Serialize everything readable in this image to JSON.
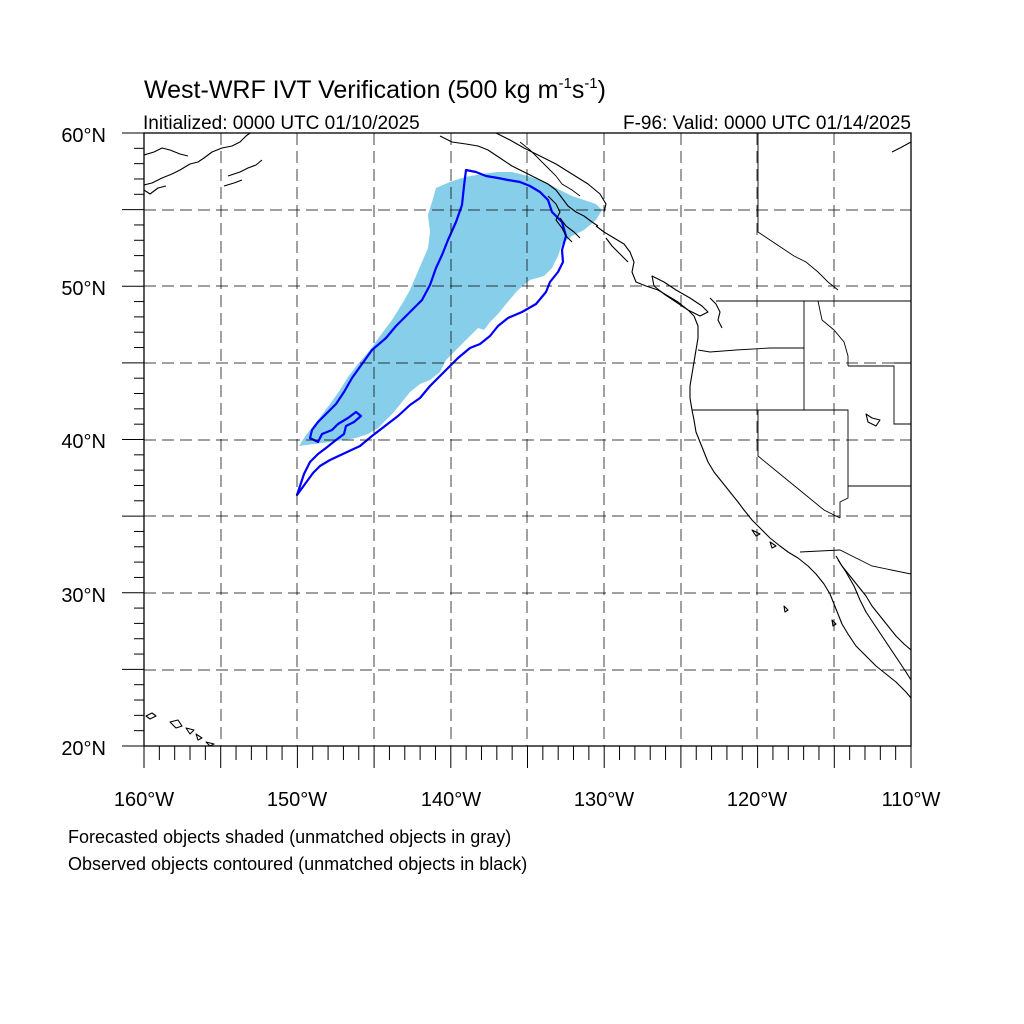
{
  "title": {
    "main": "West-WRF IVT Verification (500 kg m",
    "exp1": "-1",
    "mid": "s",
    "exp2": "-1",
    "end": ")"
  },
  "initialized": "Initialized: 0000 UTC 01/10/2025",
  "valid": "F-96: Valid: 0000 UTC 01/14/2025",
  "lat_labels": [
    "60°N",
    "50°N",
    "40°N",
    "30°N",
    "20°N"
  ],
  "lon_labels": [
    "160°W",
    "150°W",
    "140°W",
    "130°W",
    "120°W",
    "110°W"
  ],
  "footnotes": [
    "Forecasted objects shaded (unmatched objects in gray)",
    "Observed objects contoured (unmatched objects in black)"
  ],
  "map": {
    "lon_range": [
      -160,
      -110
    ],
    "lat_range": [
      20,
      60
    ],
    "grid_lon": [
      -155,
      -150,
      -145,
      -140,
      -135,
      -130,
      -125,
      -120,
      -115
    ],
    "grid_lat": [
      25,
      30,
      35,
      40,
      45,
      50,
      55
    ],
    "forecast_fill_color": "#87ceeb",
    "observed_contour_color": "#0000ff",
    "coastline_color": "#000000"
  }
}
